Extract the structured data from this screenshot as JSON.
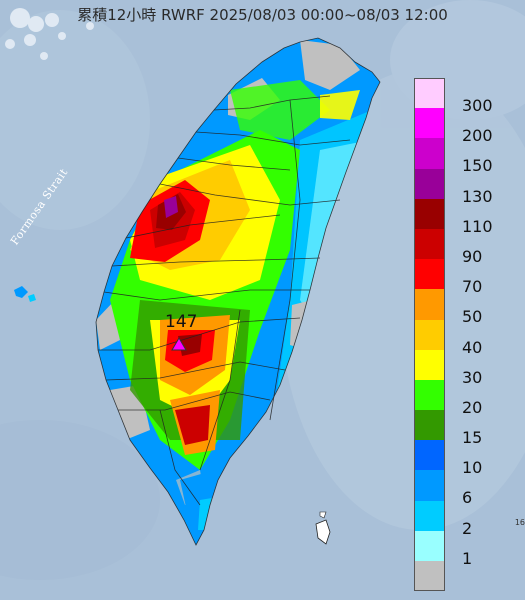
{
  "title": "累積12小時 RWRF 2025/08/03 00:00~08/03 12:00",
  "strait_label": "Formosa Strait",
  "max_value": "147",
  "corner_text": "16",
  "legend": [
    {
      "label": "300",
      "color": "#ffccff"
    },
    {
      "label": "200",
      "color": "#ff00ff"
    },
    {
      "label": "150",
      "color": "#cc00cc"
    },
    {
      "label": "130",
      "color": "#990099"
    },
    {
      "label": "110",
      "color": "#990000"
    },
    {
      "label": "90",
      "color": "#cc0000"
    },
    {
      "label": "70",
      "color": "#ff0000"
    },
    {
      "label": "50",
      "color": "#ff9900"
    },
    {
      "label": "40",
      "color": "#ffcc00"
    },
    {
      "label": "30",
      "color": "#ffff00"
    },
    {
      "label": "20",
      "color": "#33ff00"
    },
    {
      "label": "15",
      "color": "#339900"
    },
    {
      "label": "10",
      "color": "#0066ff"
    },
    {
      "label": "6",
      "color": "#0099ff"
    },
    {
      "label": "2",
      "color": "#00ccff"
    },
    {
      "label": "1",
      "color": "#99ffff"
    },
    {
      "label": "",
      "color": "#c0c0c0"
    }
  ]
}
